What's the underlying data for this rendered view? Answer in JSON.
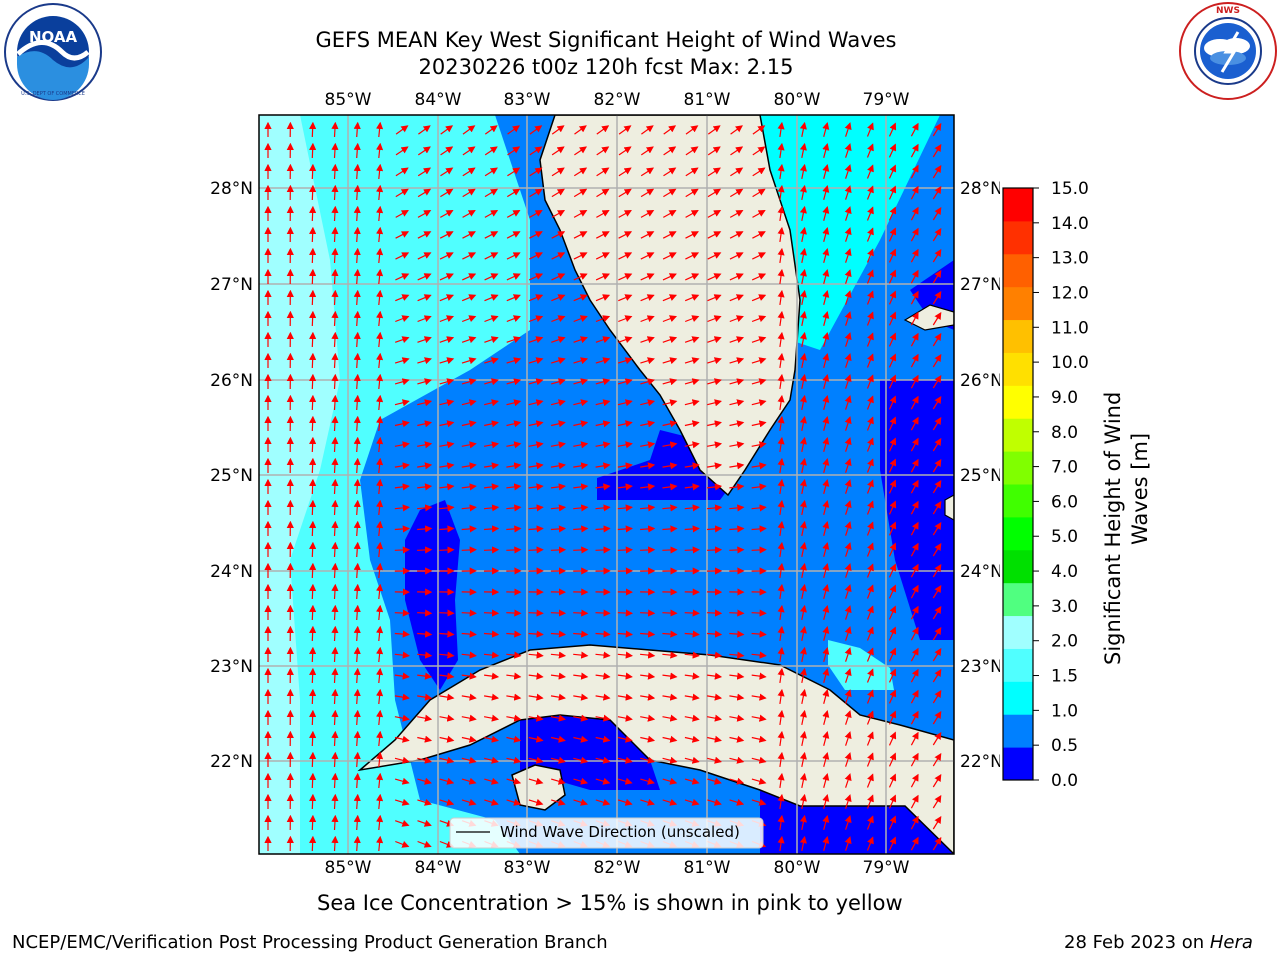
{
  "header": {
    "title_line1": "GEFS MEAN Key West Significant Height of Wind Waves",
    "title_line2": "20230226 t00z 120h fcst   Max: 2.15"
  },
  "logos": {
    "left_text": "NOAA",
    "left_ring_text": "NATIONAL OCEANIC AND ATMOSPHERIC ADMINISTRATION · U.S. DEPARTMENT OF COMMERCE",
    "right_ring_text": "NATIONAL WEATHER SERVICE"
  },
  "map": {
    "lon_labels": [
      "85°W",
      "84°W",
      "83°W",
      "82°W",
      "81°W",
      "80°W",
      "79°W"
    ],
    "lat_labels": [
      "28°N",
      "27°N",
      "26°N",
      "25°N",
      "24°N",
      "23°N",
      "22°N"
    ],
    "legend_label": "Wind Wave Direction (unscaled)",
    "colors": {
      "land": "#eeeee0",
      "arrow": "#ff0000",
      "coast": "#000000",
      "grid": "#b0b0b0"
    }
  },
  "colorbar": {
    "label_line1": "Significant Height of Wind",
    "label_line2": "Waves [m]",
    "ticks": [
      "15.0",
      "14.0",
      "13.0",
      "12.0",
      "11.0",
      "10.0",
      "9.0",
      "8.0",
      "7.0",
      "6.0",
      "5.0",
      "4.0",
      "3.0",
      "2.0",
      "1.5",
      "1.0",
      "0.5",
      "0.0"
    ],
    "colors_bottom_to_top": [
      "#0000ff",
      "#0080ff",
      "#00ffff",
      "#50ffff",
      "#a0ffff",
      "#50ff80",
      "#00e000",
      "#00ff00",
      "#40ff00",
      "#80ff00",
      "#c0ff00",
      "#ffff00",
      "#ffe000",
      "#ffc000",
      "#ff8000",
      "#ff6000",
      "#ff3000",
      "#ff0000"
    ]
  },
  "caption": "Sea Ice Concentration > 15% is shown in pink to yellow",
  "footer": {
    "left": "NCEP/EMC/Verification Post Processing Product Generation Branch",
    "date": "28 Feb 2023 on ",
    "machine": "Hera"
  }
}
